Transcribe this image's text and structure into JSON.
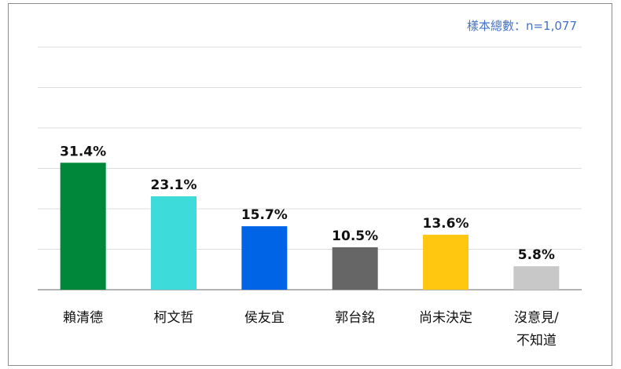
{
  "sample_note": "樣本總數：n=1,077",
  "chart_data": {
    "type": "bar",
    "title": "",
    "xlabel": "",
    "ylabel": "",
    "ylim": [
      0,
      60
    ],
    "grid": true,
    "categories": [
      [
        "賴清德"
      ],
      [
        "柯文哲"
      ],
      [
        "侯友宜"
      ],
      [
        "郭台銘"
      ],
      [
        "尚未決定"
      ],
      [
        "沒意見/",
        "不知道"
      ]
    ],
    "values": [
      31.4,
      23.1,
      15.7,
      10.5,
      13.6,
      5.8
    ],
    "value_labels": [
      "31.4%",
      "23.1%",
      "15.7%",
      "10.5%",
      "13.6%",
      "5.8%"
    ],
    "colors": [
      "#00873a",
      "#3ddbd9",
      "#0064e6",
      "#666666",
      "#ffc70f",
      "#c8c8c8"
    ]
  }
}
